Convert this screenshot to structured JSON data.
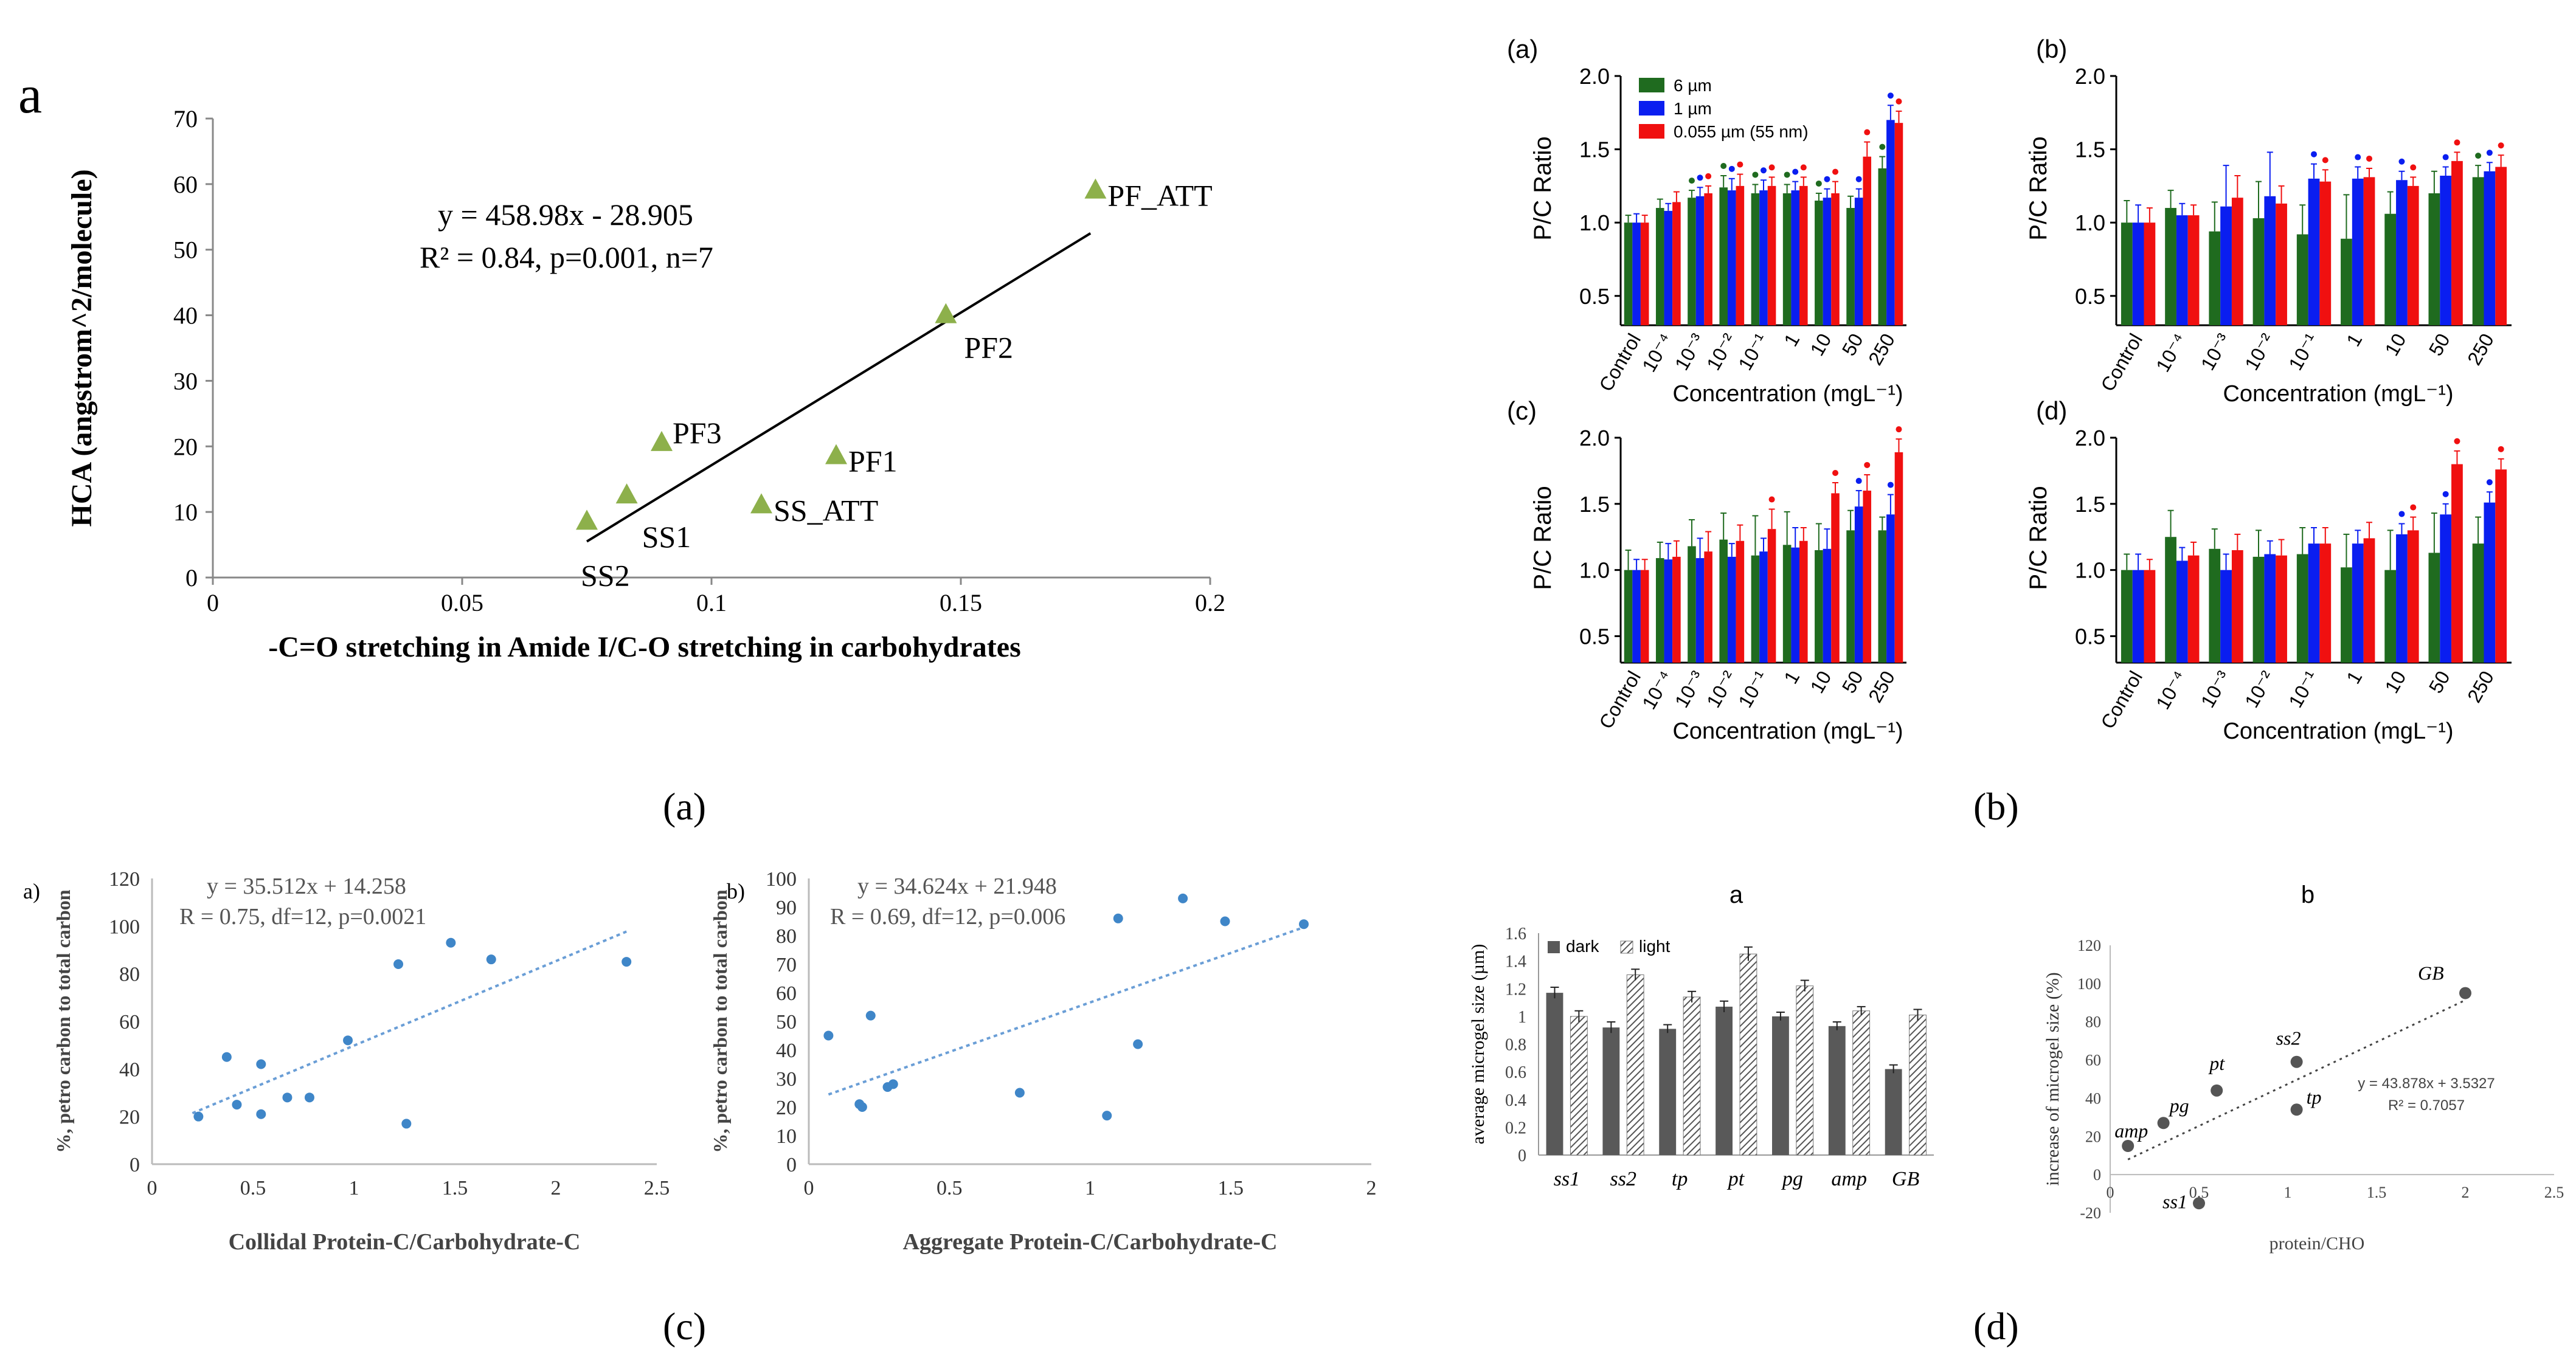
{
  "captions": [
    "(a)",
    "(b)",
    "(c)",
    "(d)"
  ],
  "chart_data": [
    {
      "id": "a",
      "type": "scatter",
      "panel_letter": "a",
      "title": "",
      "xlabel": "-C=O stretching in Amide I/C-O stretching in carbohydrates",
      "ylabel": "HCA (angstrom^2/molecule)",
      "xlim": [
        0,
        0.2
      ],
      "ylim": [
        0,
        70
      ],
      "xticks": [
        0,
        0.05,
        0.1,
        0.15,
        0.2
      ],
      "xtick_labels": [
        "0",
        "0.05",
        "0.1",
        "0.15",
        "0.2"
      ],
      "yticks": [
        0,
        10,
        20,
        30,
        40,
        50,
        60,
        70
      ],
      "ytick_labels": [
        "0",
        "10",
        "20",
        "30",
        "40",
        "50",
        "60",
        "70"
      ],
      "points": [
        {
          "label": "PF_ATT",
          "x": 0.177,
          "y": 59
        },
        {
          "label": "PF2",
          "x": 0.147,
          "y": 40
        },
        {
          "label": "PF3",
          "x": 0.09,
          "y": 20.5
        },
        {
          "label": "PF1",
          "x": 0.125,
          "y": 18.5
        },
        {
          "label": "SS1",
          "x": 0.083,
          "y": 12.5
        },
        {
          "label": "SS_ATT",
          "x": 0.11,
          "y": 11
        },
        {
          "label": "SS2",
          "x": 0.075,
          "y": 8.5
        }
      ],
      "fit": {
        "x": [
          0.075,
          0.176
        ],
        "y": [
          5.5,
          52.5
        ]
      },
      "annotation": [
        "y = 458.98x - 28.905",
        "R² = 0.84, p=0.001, n=7"
      ],
      "marker_color": "#8db04b"
    },
    {
      "id": "b",
      "type": "bar",
      "categories": [
        "Control",
        "10⁻⁴",
        "10⁻³",
        "10⁻²",
        "10⁻¹",
        "1",
        "10",
        "50",
        "250"
      ],
      "xlabel": "Concentration (mgL⁻¹)",
      "ylabel": "P/C Ratio",
      "ylim": [
        0.3,
        2.0
      ],
      "yticks": [
        0.5,
        1.0,
        1.5,
        2.0
      ],
      "ytick_labels": [
        "0.5",
        "1.0",
        "1.5",
        "2.0"
      ],
      "series_names": [
        "6 µm",
        "1 µm",
        "0.055 µm (55 nm)"
      ],
      "colors": [
        "#1f6b1f",
        "#0a1ef0",
        "#f01010"
      ],
      "subplots": [
        {
          "tag": "(a)",
          "series": [
            {
              "name": "6 µm",
              "values": [
                1.0,
                1.1,
                1.17,
                1.24,
                1.2,
                1.2,
                1.15,
                1.1,
                1.37
              ]
            },
            {
              "name": "1 µm",
              "values": [
                1.0,
                1.08,
                1.18,
                1.22,
                1.22,
                1.22,
                1.17,
                1.17,
                1.7
              ]
            },
            {
              "name": "0.055 µm (55 nm)",
              "values": [
                1.0,
                1.14,
                1.2,
                1.25,
                1.25,
                1.25,
                1.2,
                1.45,
                1.68
              ]
            }
          ],
          "errors": [
            [
              0.05,
              0.06,
              0.05,
              0.08,
              0.06,
              0.06,
              0.05,
              0.08,
              0.08
            ],
            [
              0.06,
              0.05,
              0.06,
              0.08,
              0.07,
              0.06,
              0.06,
              0.06,
              0.1
            ],
            [
              0.05,
              0.07,
              0.05,
              0.08,
              0.06,
              0.06,
              0.08,
              0.1,
              0.08
            ]
          ],
          "stars": [
            [
              false,
              false,
              true,
              true,
              true,
              true,
              true,
              false,
              true
            ],
            [
              false,
              false,
              true,
              true,
              true,
              true,
              true,
              true,
              true
            ],
            [
              false,
              false,
              true,
              true,
              true,
              true,
              true,
              true,
              true
            ]
          ]
        },
        {
          "tag": "(b)",
          "series": [
            {
              "name": "6 µm",
              "values": [
                1.0,
                1.1,
                0.94,
                1.03,
                0.92,
                0.89,
                1.06,
                1.2,
                1.31
              ]
            },
            {
              "name": "1 µm",
              "values": [
                1.0,
                1.05,
                1.11,
                1.18,
                1.3,
                1.3,
                1.29,
                1.32,
                1.35
              ]
            },
            {
              "name": "0.055 µm (55 nm)",
              "values": [
                1.0,
                1.05,
                1.17,
                1.13,
                1.28,
                1.31,
                1.25,
                1.42,
                1.38
              ]
            }
          ],
          "errors": [
            [
              0.15,
              0.12,
              0.2,
              0.25,
              0.2,
              0.3,
              0.15,
              0.15,
              0.08
            ],
            [
              0.12,
              0.08,
              0.28,
              0.3,
              0.1,
              0.08,
              0.06,
              0.06,
              0.06
            ],
            [
              0.1,
              0.07,
              0.15,
              0.12,
              0.08,
              0.06,
              0.06,
              0.06,
              0.08
            ]
          ],
          "stars": [
            [
              false,
              false,
              false,
              false,
              false,
              false,
              false,
              false,
              true
            ],
            [
              false,
              false,
              false,
              false,
              true,
              true,
              true,
              true,
              true
            ],
            [
              false,
              false,
              false,
              false,
              true,
              true,
              true,
              true,
              true
            ]
          ]
        },
        {
          "tag": "(c)",
          "series": [
            {
              "name": "6 µm",
              "values": [
                1.0,
                1.09,
                1.18,
                1.23,
                1.11,
                1.19,
                1.15,
                1.3,
                1.3
              ]
            },
            {
              "name": "1 µm",
              "values": [
                1.0,
                1.08,
                1.09,
                1.1,
                1.14,
                1.17,
                1.16,
                1.48,
                1.42
              ]
            },
            {
              "name": "0.055 µm (55 nm)",
              "values": [
                1.0,
                1.1,
                1.14,
                1.22,
                1.31,
                1.22,
                1.58,
                1.6,
                1.89
              ]
            }
          ],
          "errors": [
            [
              0.15,
              0.12,
              0.2,
              0.2,
              0.3,
              0.25,
              0.2,
              0.15,
              0.1
            ],
            [
              0.08,
              0.12,
              0.15,
              0.1,
              0.1,
              0.15,
              0.15,
              0.12,
              0.15
            ],
            [
              0.08,
              0.12,
              0.15,
              0.12,
              0.15,
              0.1,
              0.08,
              0.12,
              0.1
            ]
          ],
          "stars": [
            [
              false,
              false,
              false,
              false,
              false,
              false,
              false,
              false,
              false
            ],
            [
              false,
              false,
              false,
              false,
              false,
              false,
              false,
              true,
              true
            ],
            [
              false,
              false,
              false,
              false,
              true,
              false,
              true,
              true,
              true
            ]
          ]
        },
        {
          "tag": "(d)",
          "series": [
            {
              "name": "6 µm",
              "values": [
                1.0,
                1.25,
                1.16,
                1.1,
                1.12,
                1.02,
                1.0,
                1.13,
                1.2
              ]
            },
            {
              "name": "1 µm",
              "values": [
                1.0,
                1.07,
                1.0,
                1.12,
                1.2,
                1.2,
                1.27,
                1.42,
                1.51
              ]
            },
            {
              "name": "0.055 µm (55 nm)",
              "values": [
                1.0,
                1.11,
                1.15,
                1.11,
                1.2,
                1.24,
                1.3,
                1.8,
                1.76
              ]
            }
          ],
          "errors": [
            [
              0.12,
              0.2,
              0.15,
              0.2,
              0.2,
              0.25,
              0.3,
              0.3,
              0.2
            ],
            [
              0.12,
              0.1,
              0.12,
              0.1,
              0.12,
              0.1,
              0.08,
              0.08,
              0.08
            ],
            [
              0.08,
              0.1,
              0.12,
              0.12,
              0.12,
              0.12,
              0.1,
              0.1,
              0.08
            ]
          ],
          "stars": [
            [
              false,
              false,
              false,
              false,
              false,
              false,
              false,
              false,
              false
            ],
            [
              false,
              false,
              false,
              false,
              false,
              false,
              true,
              true,
              true
            ],
            [
              false,
              false,
              false,
              false,
              false,
              false,
              true,
              true,
              true
            ]
          ]
        }
      ]
    },
    {
      "id": "c",
      "type": "scatter",
      "subplots": [
        {
          "tag": "a)",
          "xlabel": "Collidal Protein-C/Carbohydrate-C",
          "ylabel": "%, petro carbon to total carbon",
          "xlim": [
            0,
            2.5
          ],
          "ylim": [
            0,
            120
          ],
          "xticks": [
            0,
            0.5,
            1,
            1.5,
            2,
            2.5
          ],
          "xtick_labels": [
            "0",
            "0.5",
            "1",
            "1.5",
            "2",
            "2.5"
          ],
          "yticks": [
            0,
            20,
            40,
            60,
            80,
            100,
            120
          ],
          "ytick_labels": [
            "0",
            "20",
            "40",
            "60",
            "80",
            "100",
            "120"
          ],
          "x": [
            0.23,
            0.37,
            0.42,
            0.54,
            0.54,
            0.67,
            0.78,
            0.97,
            1.22,
            1.26,
            1.48,
            1.68,
            2.35
          ],
          "y": [
            20,
            45,
            25,
            42,
            21,
            28,
            28,
            52,
            84,
            17,
            93,
            86,
            85
          ],
          "fit": {
            "x": [
              0.2,
              2.35
            ],
            "y": [
              21.4,
              97.7
            ]
          },
          "annotation": [
            "y = 35.512x + 14.258",
            "R = 0.75, df=12, p=0.0021"
          ]
        },
        {
          "tag": "b)",
          "xlabel": "Aggregate Protein-C/Carbohydrate-C",
          "ylabel": "%, petro carbon to total carbon",
          "xlim": [
            0,
            2
          ],
          "ylim": [
            0,
            100
          ],
          "xticks": [
            0,
            0.5,
            1,
            1.5,
            2
          ],
          "xtick_labels": [
            "0",
            "0.5",
            "1",
            "1.5",
            "2"
          ],
          "yticks": [
            0,
            10,
            20,
            30,
            40,
            50,
            60,
            70,
            80,
            90,
            100
          ],
          "ytick_labels": [
            "0",
            "10",
            "20",
            "30",
            "40",
            "50",
            "60",
            "70",
            "80",
            "90",
            "100"
          ],
          "x": [
            0.07,
            0.18,
            0.19,
            0.22,
            0.28,
            0.3,
            0.75,
            1.06,
            1.1,
            1.17,
            1.33,
            1.48,
            1.76
          ],
          "y": [
            45,
            21,
            20,
            52,
            27,
            28,
            25,
            17,
            86,
            42,
            93,
            85,
            84
          ],
          "fit": {
            "x": [
              0.07,
              1.76
            ],
            "y": [
              24.4,
              82.9
            ]
          },
          "annotation": [
            "y = 34.624x + 21.948",
            "R = 0.69, df=12, p=0.006"
          ]
        }
      ]
    },
    {
      "id": "d",
      "type": "bar",
      "subplots": [
        {
          "tag": "a",
          "type": "bar",
          "categories": [
            "ss1",
            "ss2",
            "tp",
            "pt",
            "pg",
            "amp",
            "GB"
          ],
          "series": [
            {
              "name": "dark",
              "values": [
                1.17,
                0.92,
                0.91,
                1.07,
                1.0,
                0.93,
                0.62
              ]
            },
            {
              "name": "light",
              "values": [
                1.0,
                1.3,
                1.14,
                1.45,
                1.22,
                1.04,
                1.01
              ]
            }
          ],
          "errors": [
            [
              0.04,
              0.04,
              0.03,
              0.04,
              0.03,
              0.03,
              0.03
            ],
            [
              0.04,
              0.04,
              0.04,
              0.05,
              0.04,
              0.03,
              0.04
            ]
          ],
          "ylabel": "average microgel size (µm)",
          "ylim": [
            0,
            1.6
          ],
          "yticks": [
            0,
            0.2,
            0.4,
            0.6,
            0.8,
            1,
            1.2,
            1.4,
            1.6
          ],
          "ytick_labels": [
            "0",
            "0.2",
            "0.4",
            "0.6",
            "0.8",
            "1",
            "1.2",
            "1.4",
            "1.6"
          ],
          "legend": [
            "dark",
            "light"
          ]
        },
        {
          "tag": "b",
          "type": "scatter",
          "labels": [
            "amp",
            "pg",
            "pt",
            "ss2",
            "tp",
            "ss1",
            "GB"
          ],
          "x": [
            0.1,
            0.3,
            0.6,
            1.05,
            1.05,
            0.5,
            2.0
          ],
          "y": [
            15,
            27,
            44,
            59,
            34,
            -15,
            95
          ],
          "xlabel": "protein/CHO",
          "ylabel": "increase of microgel size (%)",
          "xlim": [
            0,
            2.5
          ],
          "ylim": [
            -20,
            120
          ],
          "xticks": [
            0,
            0.5,
            1,
            1.5,
            2,
            2.5
          ],
          "xtick_labels": [
            "0",
            "0.5",
            "1",
            "1.5",
            "2",
            "2.5"
          ],
          "yticks": [
            -20,
            0,
            20,
            40,
            60,
            80,
            100,
            120
          ],
          "ytick_labels": [
            "-20",
            "0",
            "20",
            "40",
            "60",
            "80",
            "100",
            "120"
          ],
          "fit": {
            "x": [
              0.1,
              2.0
            ],
            "y": [
              7.9,
              91.3
            ]
          },
          "annotation": [
            "y = 43.878x + 3.5327",
            "R² = 0.7057"
          ]
        }
      ]
    }
  ]
}
